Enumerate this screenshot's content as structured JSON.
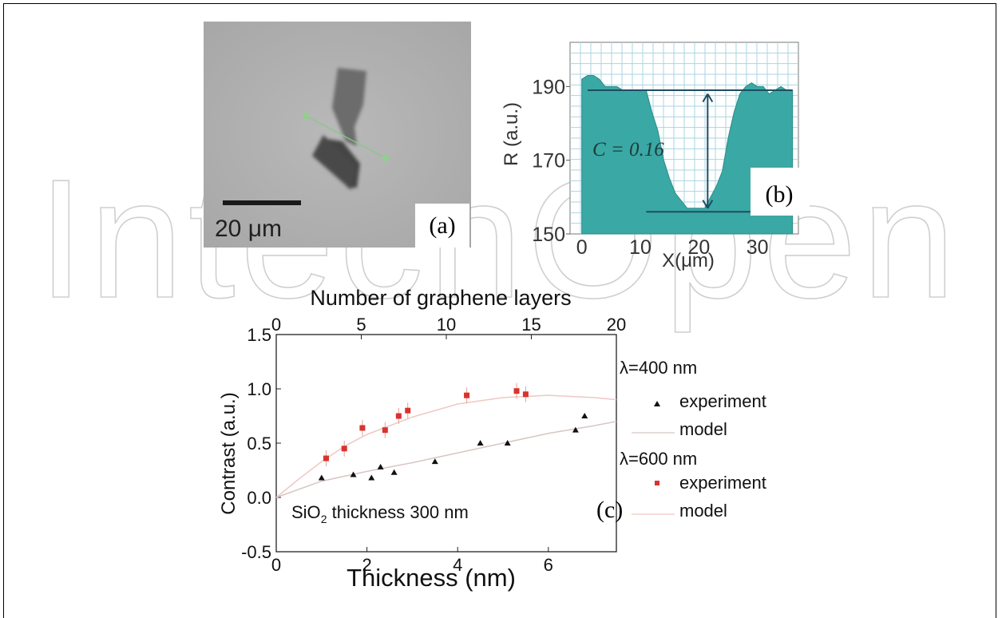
{
  "figure": {
    "panel_a": {
      "label": "(a)",
      "scalebar_label": "20 μm"
    },
    "panel_b": {
      "label": "(b)",
      "annotation": "C = 0.16",
      "ylabel": "R (a.u.)",
      "xlabel": "X(μm)",
      "yticks": [
        "190",
        "170",
        "150"
      ],
      "xticks": [
        "0",
        "10",
        "20",
        "30"
      ]
    },
    "panel_c": {
      "label": "(c)",
      "top_axis_label": "Number of graphene layers",
      "bottom_axis_label": "Thickness (nm)",
      "ylabel": "Contrast (a.u.)",
      "annotation_prefix": "SiO",
      "annotation_sub": "2",
      "annotation_suffix": " thickness 300 nm",
      "legend": {
        "group1_title": "λ=400 nm",
        "group1_experiment": "experiment",
        "group1_model": "model",
        "group2_title": "λ=600 nm",
        "group2_experiment": "experiment",
        "group2_model": "model"
      }
    }
  },
  "watermark": "IntechOpen",
  "colors": {
    "cyan_fill": "#3aa8a4",
    "red_marker": "#d9332e",
    "black_marker": "#111111",
    "model_line": "#f0c8c4"
  },
  "chart_data": [
    {
      "type": "line",
      "panel": "b",
      "xlabel": "X(μm)",
      "ylabel": "R (a.u.)",
      "xlim": [
        -2,
        37
      ],
      "ylim": [
        150,
        202
      ],
      "x_ticks": [
        0,
        10,
        20,
        30
      ],
      "y_ticks": [
        150,
        170,
        190
      ],
      "series": [
        {
          "x": [
            0,
            1,
            2,
            3,
            4,
            5,
            6,
            7,
            8,
            9,
            10,
            11,
            12,
            13,
            14,
            15,
            16,
            17,
            18,
            19,
            20,
            21,
            22,
            23,
            24,
            25,
            26,
            27,
            28,
            29,
            30,
            31,
            32,
            33,
            34,
            35,
            36
          ],
          "values": [
            192,
            193,
            193,
            192,
            190,
            190,
            190,
            189,
            189,
            189,
            189,
            189,
            183,
            178,
            170,
            165,
            161,
            159,
            157,
            157,
            157,
            157,
            160,
            163,
            167,
            176,
            183,
            188,
            190,
            191,
            190,
            190,
            188,
            189,
            190,
            189,
            189
          ]
        }
      ],
      "annotations": [
        "C = 0.16"
      ]
    },
    {
      "type": "scatter",
      "panel": "c",
      "xlabel": "Thickness (nm)",
      "x2label": "Number of graphene layers",
      "ylabel": "Contrast (a.u.)",
      "xlim": [
        0,
        7.5
      ],
      "ylim": [
        -0.5,
        1.5
      ],
      "x_ticks": [
        0,
        2,
        4,
        6
      ],
      "x2_ticks": [
        0,
        5,
        10,
        15,
        20
      ],
      "y_ticks": [
        -0.5,
        0.0,
        0.5,
        1.0,
        1.5
      ],
      "series": [
        {
          "name": "experiment",
          "group": "λ=400 nm",
          "marker": "triangle",
          "x": [
            1.0,
            1.7,
            2.1,
            2.3,
            2.6,
            3.5,
            4.5,
            5.1,
            6.6,
            6.8
          ],
          "values": [
            0.18,
            0.21,
            0.18,
            0.28,
            0.23,
            0.33,
            0.5,
            0.5,
            0.62,
            0.75
          ]
        },
        {
          "name": "model",
          "group": "λ=400 nm",
          "x": [
            0,
            1,
            2,
            3,
            4,
            5,
            6,
            7,
            7.5
          ],
          "values": [
            0.0,
            0.15,
            0.24,
            0.32,
            0.41,
            0.5,
            0.59,
            0.66,
            0.7
          ]
        },
        {
          "name": "experiment",
          "group": "λ=600 nm",
          "marker": "square",
          "x": [
            1.1,
            1.5,
            1.9,
            2.4,
            2.7,
            2.9,
            4.2,
            5.3,
            5.5
          ],
          "values": [
            0.36,
            0.45,
            0.64,
            0.62,
            0.75,
            0.8,
            0.94,
            0.98,
            0.95
          ]
        },
        {
          "name": "model",
          "group": "λ=600 nm",
          "x": [
            0,
            0.5,
            1,
            1.5,
            2,
            3,
            4,
            5,
            6,
            7,
            7.5
          ],
          "values": [
            0.0,
            0.17,
            0.33,
            0.47,
            0.58,
            0.74,
            0.86,
            0.92,
            0.94,
            0.92,
            0.9
          ]
        }
      ],
      "annotations": [
        "SiO2 thickness 300 nm"
      ]
    }
  ]
}
